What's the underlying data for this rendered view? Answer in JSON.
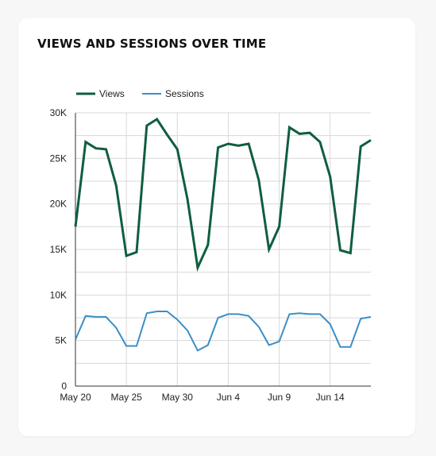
{
  "colors": {
    "views": "#0f5e3e",
    "sessions": "#3a8fc6",
    "grid": "#d8d8d8",
    "axis": "#333333"
  },
  "chart_data": {
    "type": "line",
    "title": "VIEWS AND SESSIONS OVER TIME",
    "x": [
      "2024-05-20",
      "2024-05-21",
      "2024-05-22",
      "2024-05-23",
      "2024-05-24",
      "2024-05-25",
      "2024-05-26",
      "2024-05-27",
      "2024-05-28",
      "2024-05-29",
      "2024-05-30",
      "2024-05-31",
      "2024-06-01",
      "2024-06-02",
      "2024-06-03",
      "2024-06-04",
      "2024-06-05",
      "2024-06-06",
      "2024-06-07",
      "2024-06-08",
      "2024-06-09",
      "2024-06-10",
      "2024-06-11",
      "2024-06-12",
      "2024-06-13",
      "2024-06-14",
      "2024-06-15",
      "2024-06-16",
      "2024-06-17",
      "2024-06-18"
    ],
    "x_tick_labels": [
      "May 20",
      "May 25",
      "May 30",
      "Jun 4",
      "Jun 9",
      "Jun 14"
    ],
    "x_tick_indices": [
      0,
      5,
      10,
      15,
      20,
      25
    ],
    "y_ticks": [
      0,
      5000,
      10000,
      15000,
      20000,
      25000,
      30000
    ],
    "y_tick_labels": [
      "0",
      "5K",
      "10K",
      "15K",
      "20K",
      "25K",
      "30K"
    ],
    "ylim": [
      0,
      30000
    ],
    "grid": true,
    "legend_position": "top-left",
    "series": [
      {
        "name": "Views",
        "values": [
          17500,
          26800,
          26100,
          26000,
          22000,
          14300,
          14700,
          28600,
          29300,
          27600,
          26000,
          20500,
          13000,
          15500,
          26200,
          26600,
          26400,
          26600,
          22600,
          15000,
          17500,
          28400,
          27700,
          27800,
          26800,
          23000,
          14900,
          14600,
          26300,
          27000
        ]
      },
      {
        "name": "Sessions",
        "values": [
          5100,
          7700,
          7600,
          7600,
          6400,
          4400,
          4400,
          8000,
          8200,
          8200,
          7300,
          6100,
          3900,
          4500,
          7500,
          7900,
          7900,
          7700,
          6500,
          4500,
          4900,
          7900,
          8000,
          7900,
          7900,
          6800,
          4300,
          4300,
          7400,
          7600
        ]
      }
    ]
  }
}
